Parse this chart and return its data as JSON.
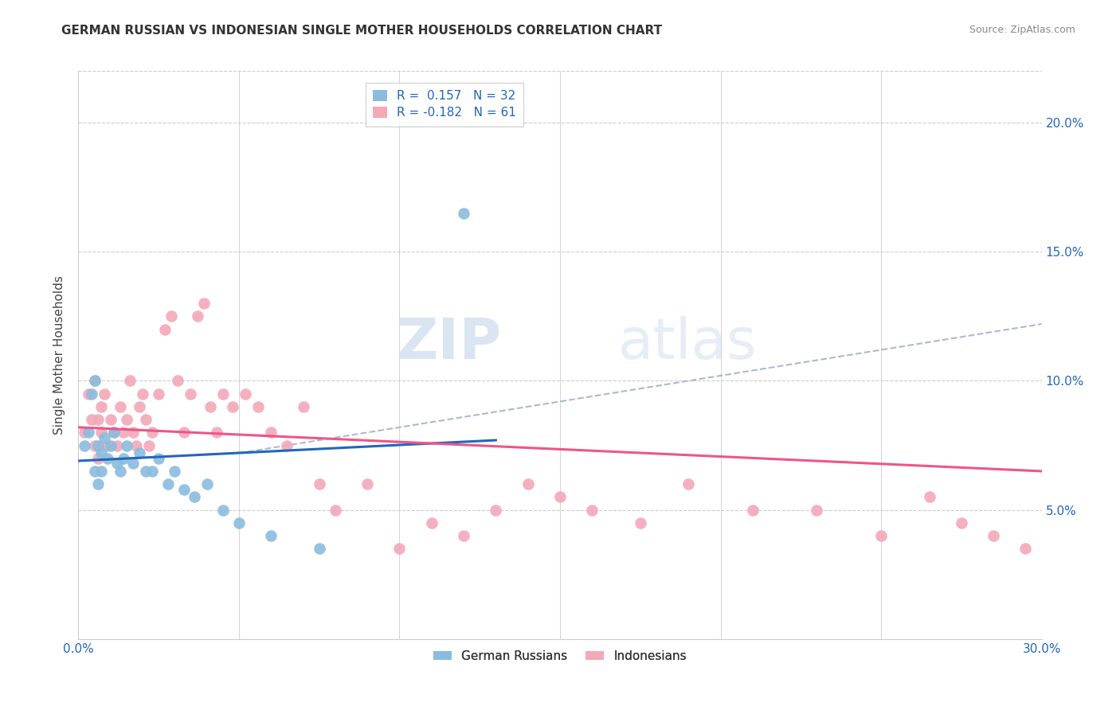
{
  "title": "GERMAN RUSSIAN VS INDONESIAN SINGLE MOTHER HOUSEHOLDS CORRELATION CHART",
  "source": "Source: ZipAtlas.com",
  "ylabel": "Single Mother Households",
  "xlim": [
    0.0,
    0.3
  ],
  "ylim": [
    0.0,
    0.22
  ],
  "yticks": [
    0.05,
    0.1,
    0.15,
    0.2
  ],
  "ytick_labels": [
    "5.0%",
    "10.0%",
    "15.0%",
    "20.0%"
  ],
  "xticks": [
    0.0,
    0.05,
    0.1,
    0.15,
    0.2,
    0.25,
    0.3
  ],
  "xtick_labels": [
    "0.0%",
    "",
    "",
    "",
    "",
    "",
    "30.0%"
  ],
  "legend_blue_label": "German Russians",
  "legend_pink_label": "Indonesians",
  "r_blue": 0.157,
  "n_blue": 32,
  "r_pink": -0.182,
  "n_pink": 61,
  "blue_color": "#8BBCDE",
  "pink_color": "#F4A8B8",
  "blue_line_color": "#2266BB",
  "pink_line_color": "#EE5588",
  "dashed_line_color": "#AABBCC",
  "watermark_zip": "ZIP",
  "watermark_atlas": "atlas",
  "blue_scatter_x": [
    0.002,
    0.003,
    0.004,
    0.005,
    0.005,
    0.006,
    0.006,
    0.007,
    0.007,
    0.008,
    0.009,
    0.01,
    0.011,
    0.012,
    0.013,
    0.014,
    0.015,
    0.017,
    0.019,
    0.021,
    0.023,
    0.025,
    0.028,
    0.03,
    0.033,
    0.036,
    0.04,
    0.045,
    0.05,
    0.06,
    0.075,
    0.12
  ],
  "blue_scatter_y": [
    0.075,
    0.08,
    0.095,
    0.1,
    0.065,
    0.075,
    0.06,
    0.072,
    0.065,
    0.078,
    0.07,
    0.075,
    0.08,
    0.068,
    0.065,
    0.07,
    0.075,
    0.068,
    0.072,
    0.065,
    0.065,
    0.07,
    0.06,
    0.065,
    0.058,
    0.055,
    0.06,
    0.05,
    0.045,
    0.04,
    0.035,
    0.165
  ],
  "pink_scatter_x": [
    0.002,
    0.003,
    0.004,
    0.005,
    0.005,
    0.006,
    0.006,
    0.007,
    0.007,
    0.008,
    0.009,
    0.01,
    0.011,
    0.012,
    0.013,
    0.014,
    0.015,
    0.016,
    0.017,
    0.018,
    0.019,
    0.02,
    0.021,
    0.022,
    0.023,
    0.025,
    0.027,
    0.029,
    0.031,
    0.033,
    0.035,
    0.037,
    0.039,
    0.041,
    0.043,
    0.045,
    0.048,
    0.052,
    0.056,
    0.06,
    0.065,
    0.07,
    0.075,
    0.08,
    0.09,
    0.1,
    0.11,
    0.12,
    0.13,
    0.14,
    0.15,
    0.16,
    0.175,
    0.19,
    0.21,
    0.23,
    0.25,
    0.265,
    0.275,
    0.285,
    0.295
  ],
  "pink_scatter_y": [
    0.08,
    0.095,
    0.085,
    0.1,
    0.075,
    0.085,
    0.07,
    0.08,
    0.09,
    0.095,
    0.075,
    0.085,
    0.08,
    0.075,
    0.09,
    0.08,
    0.085,
    0.1,
    0.08,
    0.075,
    0.09,
    0.095,
    0.085,
    0.075,
    0.08,
    0.095,
    0.12,
    0.125,
    0.1,
    0.08,
    0.095,
    0.125,
    0.13,
    0.09,
    0.08,
    0.095,
    0.09,
    0.095,
    0.09,
    0.08,
    0.075,
    0.09,
    0.06,
    0.05,
    0.06,
    0.035,
    0.045,
    0.04,
    0.05,
    0.06,
    0.055,
    0.05,
    0.045,
    0.06,
    0.05,
    0.05,
    0.04,
    0.055,
    0.045,
    0.04,
    0.035
  ],
  "blue_regline_x": [
    0.0,
    0.13
  ],
  "blue_regline_y": [
    0.069,
    0.077
  ],
  "pink_regline_x": [
    0.0,
    0.3
  ],
  "pink_regline_y": [
    0.082,
    0.065
  ],
  "dashed_regline_x": [
    0.05,
    0.3
  ],
  "dashed_regline_y": [
    0.072,
    0.122
  ]
}
